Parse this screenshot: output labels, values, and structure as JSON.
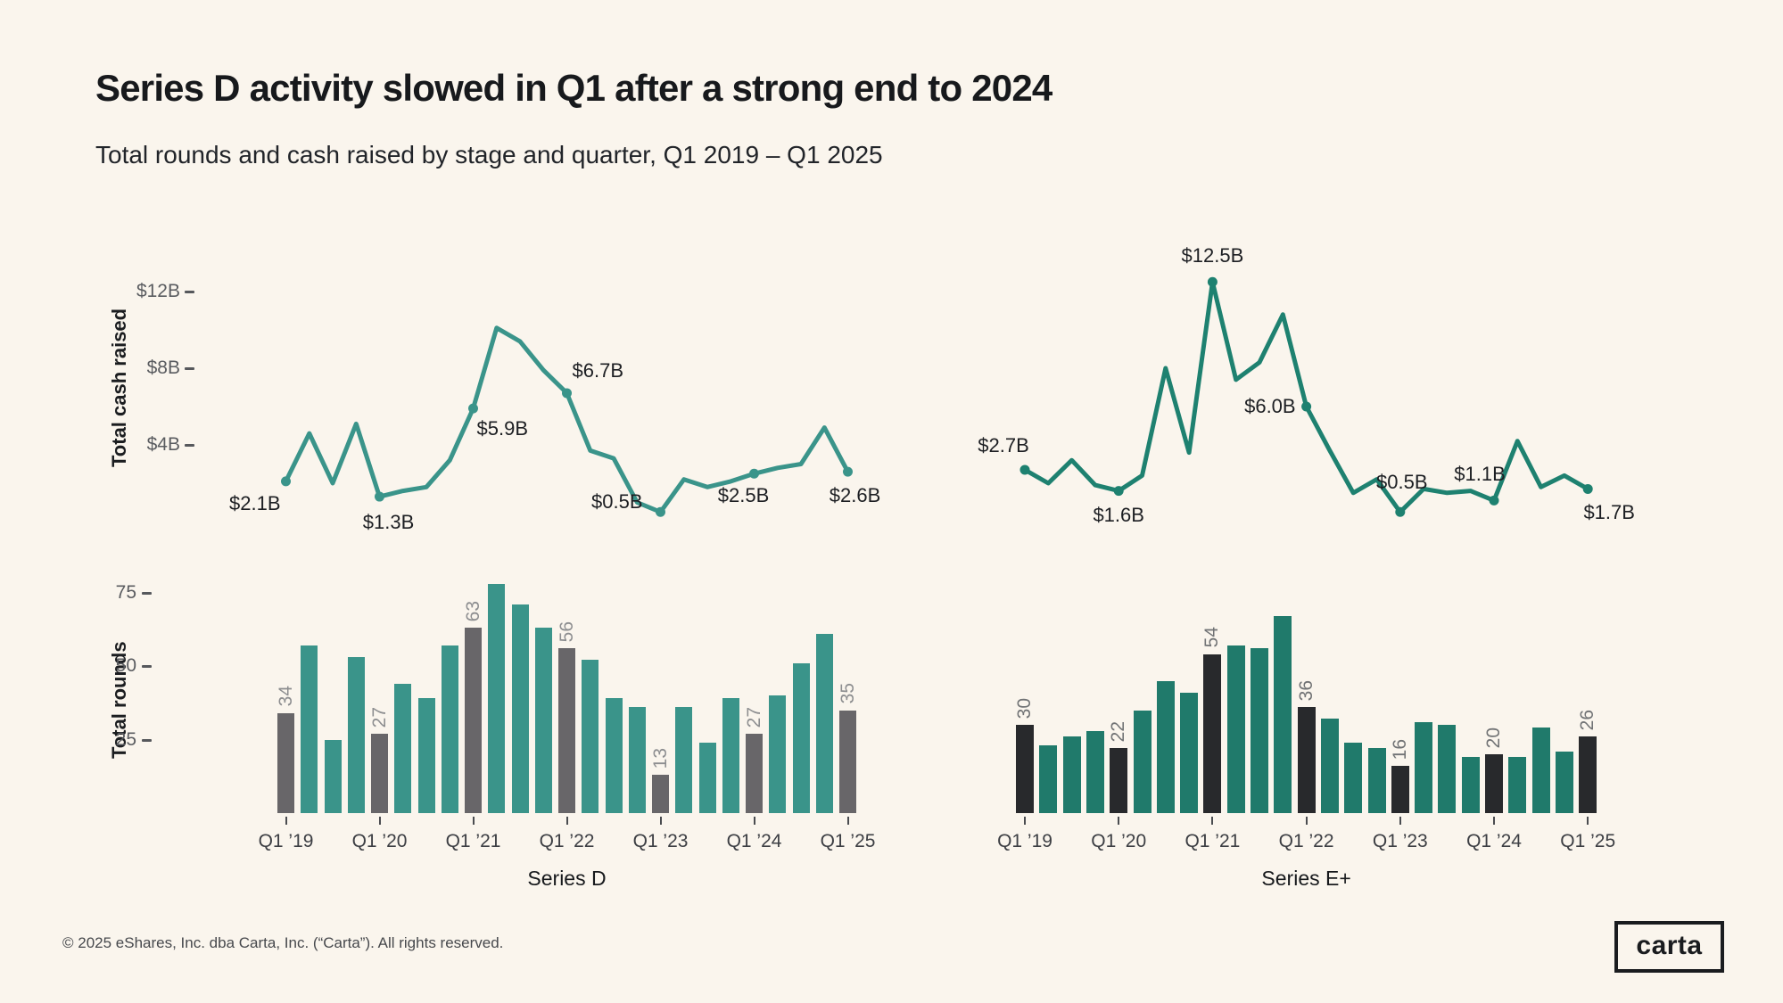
{
  "page": {
    "title": "Series D activity slowed in Q1 after a strong end to 2024",
    "subtitle": "Total rounds and cash raised by stage and quarter, Q1 2019 – Q1 2025",
    "footer": "© 2025 eShares, Inc. dba Carta, Inc. (“Carta”). All rights reserved.",
    "logo_text": "carta"
  },
  "colors": {
    "background": "#faf5ed",
    "series_d_teal": "#3a948a",
    "series_d_gray": "#686669",
    "series_e_teal": "#207a6b",
    "series_e_dark": "#28292c",
    "line_d": "#3a948a",
    "line_e": "#1e8170",
    "axis_text": "#5a5c60",
    "annotation_text": "#1d1f23",
    "value_label_d": "#8d8e90",
    "value_label_e": "#717375"
  },
  "chart_data": [
    {
      "id": "series-d-cash",
      "type": "line",
      "series": "Series D",
      "ylabel": "Total cash raised",
      "unit": "USD billions",
      "x_note": "quarterly, Q1 2019 – Q1 2025",
      "x_tick_labels": [
        "Q1 ’19",
        "Q1 ’20",
        "Q1 ’21",
        "Q1 ’22",
        "Q1 ’23",
        "Q1 ’24",
        "Q1 ’25"
      ],
      "values": [
        2.1,
        4.6,
        2.0,
        5.1,
        1.3,
        1.6,
        1.8,
        3.2,
        5.9,
        10.1,
        9.4,
        7.9,
        6.7,
        3.7,
        3.3,
        1.0,
        0.5,
        2.2,
        1.8,
        2.1,
        2.5,
        2.8,
        3.0,
        4.9,
        2.6
      ],
      "ylim": [
        0,
        13
      ],
      "yticks": [
        {
          "label": "$4B",
          "value": 4
        },
        {
          "label": "$8B",
          "value": 8
        },
        {
          "label": "$12B",
          "value": 12
        }
      ],
      "point_labels": [
        {
          "index": 0,
          "text": "$2.1B"
        },
        {
          "index": 4,
          "text": "$1.3B"
        },
        {
          "index": 8,
          "text": "$5.9B"
        },
        {
          "index": 12,
          "text": "$6.7B"
        },
        {
          "index": 16,
          "text": "$0.5B"
        },
        {
          "index": 20,
          "text": "$2.5B"
        },
        {
          "index": 24,
          "text": "$2.6B"
        }
      ],
      "color": "#3a948a"
    },
    {
      "id": "series-e-cash",
      "type": "line",
      "series": "Series E+",
      "ylabel": "Total cash raised",
      "unit": "USD billions",
      "x_note": "quarterly, Q1 2019 – Q1 2025",
      "x_tick_labels": [
        "Q1 ’19",
        "Q1 ’20",
        "Q1 ’21",
        "Q1 ’22",
        "Q1 ’23",
        "Q1 ’24",
        "Q1 ’25"
      ],
      "values": [
        2.7,
        2.0,
        3.2,
        1.9,
        1.6,
        2.4,
        8.0,
        3.6,
        12.5,
        7.4,
        8.3,
        10.8,
        6.0,
        3.7,
        1.5,
        2.2,
        0.5,
        1.7,
        1.5,
        1.6,
        1.1,
        4.2,
        1.8,
        2.4,
        1.7
      ],
      "ylim": [
        0,
        13
      ],
      "yticks": [],
      "point_labels": [
        {
          "index": 0,
          "text": "$2.7B"
        },
        {
          "index": 4,
          "text": "$1.6B"
        },
        {
          "index": 8,
          "text": "$12.5B"
        },
        {
          "index": 12,
          "text": "$6.0B"
        },
        {
          "index": 16,
          "text": "$0.5B"
        },
        {
          "index": 20,
          "text": "$1.1B"
        },
        {
          "index": 24,
          "text": "$1.7B"
        }
      ],
      "color": "#1e8170"
    },
    {
      "id": "series-d-rounds",
      "type": "bar",
      "series": "Series D",
      "ylabel": "Total rounds",
      "x_note": "quarterly, Q1 2019 – Q1 2025",
      "x_tick_labels": [
        "Q1 ’19",
        "Q1 ’20",
        "Q1 ’21",
        "Q1 ’22",
        "Q1 ’23",
        "Q1 ’24",
        "Q1 ’25"
      ],
      "values": [
        34,
        57,
        25,
        53,
        27,
        44,
        39,
        57,
        63,
        78,
        71,
        63,
        56,
        52,
        39,
        36,
        13,
        36,
        24,
        39,
        27,
        40,
        51,
        61,
        35
      ],
      "ylim": [
        0,
        80
      ],
      "yticks": [
        {
          "label": "25",
          "value": 25
        },
        {
          "label": "50",
          "value": 50
        },
        {
          "label": "75",
          "value": 75
        }
      ],
      "highlight_indices": [
        0,
        4,
        8,
        12,
        16,
        20,
        24
      ],
      "value_labels": [
        "34",
        "27",
        "63",
        "56",
        "13",
        "27",
        "35"
      ],
      "bar_color": "#3a948a",
      "highlight_color": "#686669",
      "value_label_color": "#8d8e90"
    },
    {
      "id": "series-e-rounds",
      "type": "bar",
      "series": "Series E+",
      "ylabel": "Total rounds",
      "x_note": "quarterly, Q1 2019 – Q1 2025",
      "x_tick_labels": [
        "Q1 ’19",
        "Q1 ’20",
        "Q1 ’21",
        "Q1 ’22",
        "Q1 ’23",
        "Q1 ’24",
        "Q1 ’25"
      ],
      "values": [
        30,
        23,
        26,
        28,
        22,
        35,
        45,
        41,
        54,
        57,
        56,
        67,
        36,
        32,
        24,
        22,
        16,
        31,
        30,
        19,
        20,
        19,
        29,
        21,
        26
      ],
      "ylim": [
        0,
        80
      ],
      "yticks": [],
      "highlight_indices": [
        0,
        4,
        8,
        12,
        16,
        20,
        24
      ],
      "value_labels": [
        "30",
        "22",
        "54",
        "36",
        "16",
        "20",
        "26"
      ],
      "bar_color": "#207a6b",
      "highlight_color": "#28292c",
      "value_label_color": "#717375"
    }
  ]
}
